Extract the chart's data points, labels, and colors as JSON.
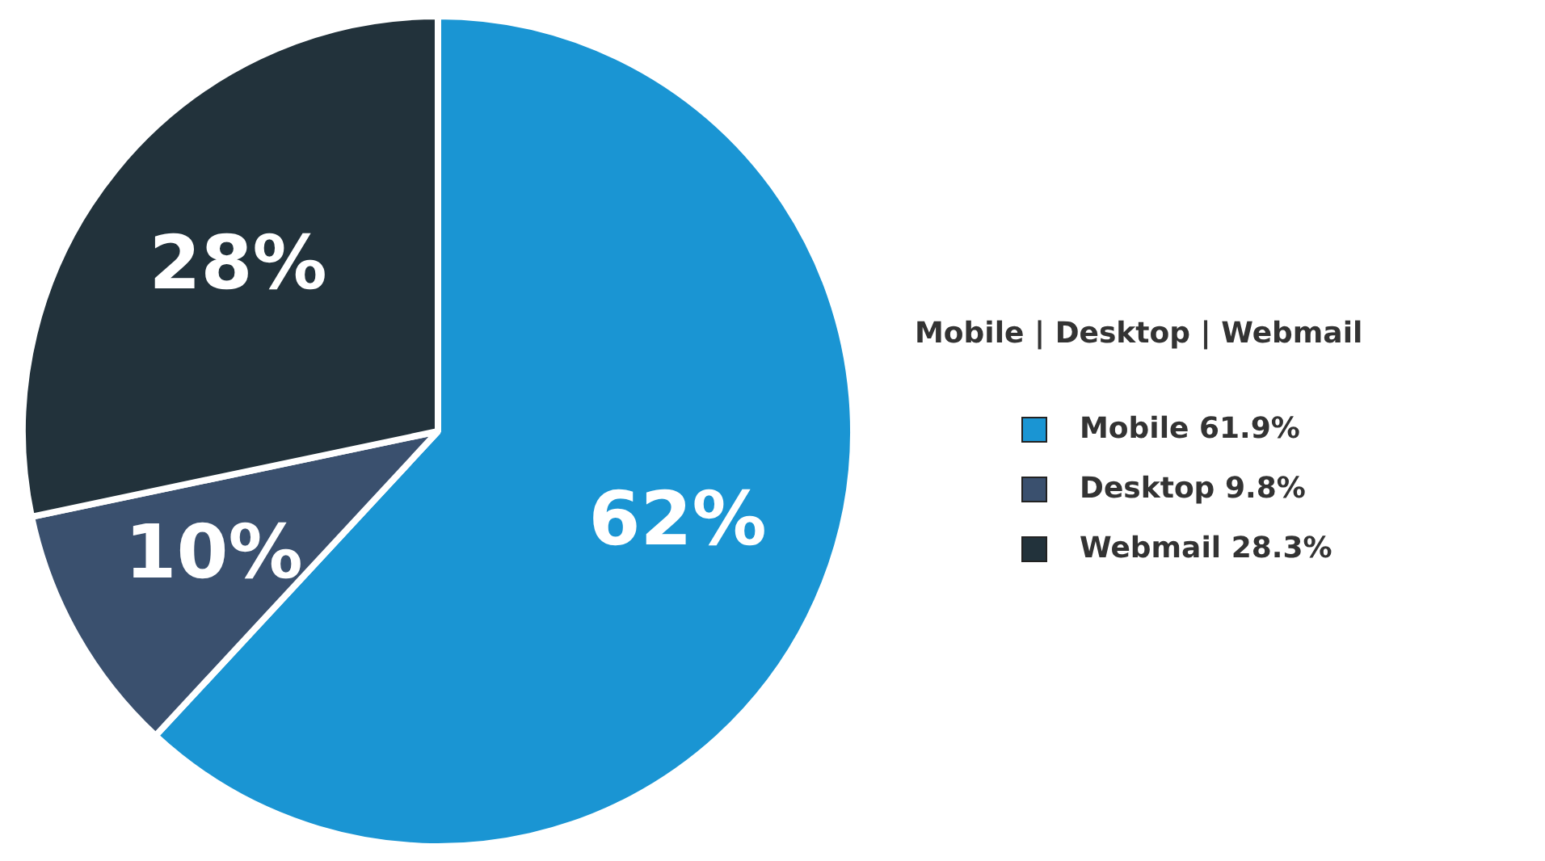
{
  "chart_data": {
    "type": "pie",
    "title": "Mobile | Desktop | Webmail",
    "categories": [
      "Mobile 61.9%",
      "Desktop 9.8%",
      "Webmail 28.3%"
    ],
    "values": [
      61.9,
      9.8,
      28.3
    ],
    "colors": [
      "#1a95d3",
      "#3a506e",
      "#22323b"
    ],
    "value_labels": [
      "62%",
      "10%",
      "28%"
    ],
    "legend": "right"
  }
}
